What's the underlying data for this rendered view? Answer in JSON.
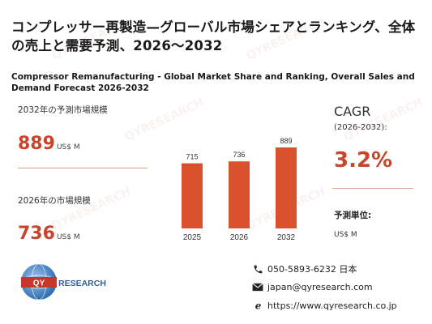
{
  "title_jp": "コンプレッサー再製造—グローバル市場シェアとランキング、全体の売上と需要予測、2026～2032",
  "title_en": "Compressor Remanufacturing - Global Market Share and Ranking, Overall Sales and Demand Forecast 2026-2032",
  "stats": {
    "forecast_label": "2032年の予測市場規模",
    "forecast_value": "889",
    "forecast_unit": "US$ M",
    "current_label": "2026年の市場規模",
    "current_value": "736",
    "current_unit": "US$ M"
  },
  "cagr": {
    "title": "CAGR",
    "period": "(2026-2032):",
    "value": "3.2%",
    "unit_label": "予測単位:",
    "unit_value": "US$ M"
  },
  "chart_data": {
    "type": "bar",
    "categories": [
      "2025",
      "2026",
      "2032"
    ],
    "values": [
      715,
      736,
      889
    ],
    "title": "",
    "xlabel": "",
    "ylabel": "",
    "ylim": [
      0,
      900
    ],
    "bar_color": "#d9502c"
  },
  "logo": {
    "brand": "QYRESEARCH"
  },
  "contact": {
    "phone": "050-5893-6232 日本",
    "email": "japan@qyresearch.com",
    "web": "https://www.qyresearch.co.jp"
  },
  "colors": {
    "accent": "#c8452b",
    "bar": "#d9502c"
  }
}
